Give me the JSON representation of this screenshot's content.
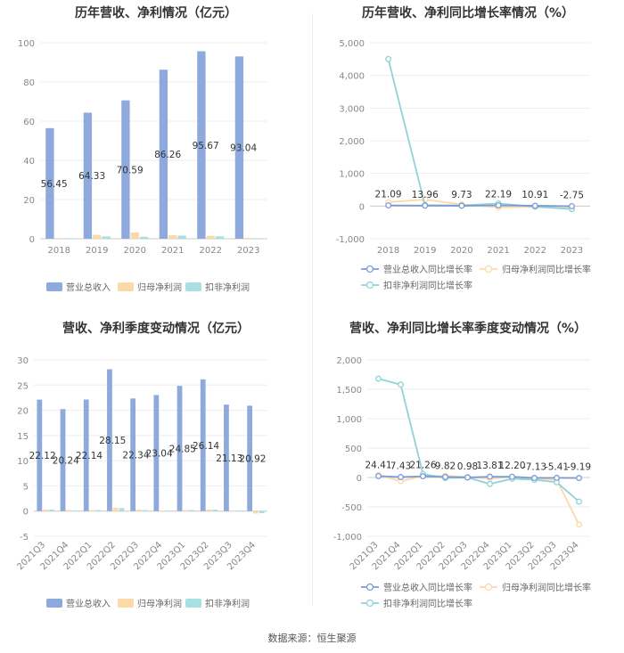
{
  "source": "数据来源：恒生聚源",
  "legend_labels": {
    "p1": [
      "营业总收入",
      "归母净利润",
      "扣非净利润"
    ],
    "p2": [
      "营业总收入同比增长率",
      "归母净利润同比增长率",
      "扣非净利润同比增长率"
    ]
  },
  "colors": {
    "revenue": "#8eaadc",
    "net_profit": "#fcd9a8",
    "deducted_profit": "#a8dfe3",
    "axis_text": "#888888",
    "grid": "#eeeeee"
  },
  "chart_data": [
    {
      "type": "bar",
      "title": "历年营收、净利情况（亿元）",
      "categories": [
        "2018",
        "2019",
        "2020",
        "2021",
        "2022",
        "2023"
      ],
      "ylim": [
        0,
        100
      ],
      "yticks": [
        0,
        20,
        40,
        60,
        80,
        100
      ],
      "series": [
        {
          "name": "营业总收入",
          "values": [
            56.45,
            64.33,
            70.59,
            86.26,
            95.67,
            93.04
          ]
        },
        {
          "name": "归母净利润",
          "values": [
            0.4,
            2.0,
            3.2,
            1.8,
            1.5,
            0.5
          ]
        },
        {
          "name": "扣非净利润",
          "values": [
            0.3,
            1.2,
            1.0,
            1.6,
            1.2,
            0.3
          ]
        }
      ],
      "data_labels": [
        "56.45",
        "64.33",
        "70.59",
        "86.26",
        "95.67",
        "93.04"
      ]
    },
    {
      "type": "line",
      "title": "历年营收、净利同比增长率情况（%）",
      "categories": [
        "2018",
        "2019",
        "2020",
        "2021",
        "2022",
        "2023"
      ],
      "ylim": [
        -1000,
        5000
      ],
      "yticks": [
        -1000,
        0,
        1000,
        2000,
        3000,
        4000,
        5000
      ],
      "ytick_labels": [
        "-1,000",
        "0",
        "1,000",
        "2,000",
        "3,000",
        "4,000",
        "5,000"
      ],
      "series": [
        {
          "name": "营业总收入同比增长率",
          "values": [
            21.09,
            13.96,
            9.73,
            22.19,
            10.91,
            -2.75
          ]
        },
        {
          "name": "归母净利润同比增长率",
          "values": [
            120,
            200,
            50,
            -40,
            -20,
            -60
          ]
        },
        {
          "name": "扣非净利润同比增长率",
          "values": [
            4500,
            30,
            20,
            80,
            -20,
            -90
          ]
        }
      ],
      "data_labels": [
        "21.09",
        "13.96",
        "9.73",
        "22.19",
        "10.91",
        "-2.75"
      ]
    },
    {
      "type": "bar",
      "title": "营收、净利季度变动情况（亿元）",
      "categories": [
        "2021Q3",
        "2021Q4",
        "2022Q1",
        "2022Q2",
        "2022Q3",
        "2022Q4",
        "2023Q1",
        "2023Q2",
        "2023Q3",
        "2023Q4"
      ],
      "ylim": [
        -5,
        30
      ],
      "yticks": [
        -5,
        0,
        5,
        10,
        15,
        20,
        25,
        30
      ],
      "series": [
        {
          "name": "营业总收入",
          "values": [
            22.12,
            20.24,
            22.14,
            28.15,
            22.34,
            23.04,
            24.85,
            26.14,
            21.13,
            20.92
          ]
        },
        {
          "name": "归母净利润",
          "values": [
            0.3,
            0.2,
            0.2,
            0.7,
            0.3,
            0.1,
            0.2,
            0.3,
            0.1,
            -0.5
          ]
        },
        {
          "name": "扣非净利润",
          "values": [
            0.3,
            0.1,
            0.2,
            0.6,
            0.2,
            0.05,
            0.2,
            0.3,
            0.05,
            -0.4
          ]
        }
      ],
      "data_labels": [
        "22.12",
        "20.24",
        "22.14",
        "28.15",
        "22.34",
        "23.04",
        "24.85",
        "26.14",
        "21.13",
        "20.92"
      ]
    },
    {
      "type": "line",
      "title": "营收、净利同比增长率季度变动情况（%）",
      "categories": [
        "2021Q3",
        "2021Q4",
        "2022Q1",
        "2022Q2",
        "2022Q3",
        "2022Q4",
        "2023Q1",
        "2023Q2",
        "2023Q3",
        "2023Q4"
      ],
      "ylim": [
        -1000,
        2000
      ],
      "yticks": [
        -1000,
        -500,
        0,
        500,
        1000,
        1500,
        2000
      ],
      "ytick_labels": [
        "-1,000",
        "-500",
        "0",
        "500",
        "1,000",
        "1,500",
        "2,000"
      ],
      "series": [
        {
          "name": "营业总收入同比增长率",
          "values": [
            24.41,
            7.43,
            21.26,
            9.82,
            0.98,
            13.81,
            12.2,
            -7.13,
            -5.41,
            -9.19
          ]
        },
        {
          "name": "归母净利润同比增长率",
          "values": [
            40,
            -60,
            20,
            30,
            10,
            -20,
            10,
            -20,
            -40,
            -800
          ]
        },
        {
          "name": "扣非净利润同比增长率",
          "values": [
            1680,
            1580,
            60,
            -10,
            0,
            -110,
            -20,
            -40,
            -80,
            -410
          ]
        }
      ],
      "data_labels": [
        "24.41",
        "7.43",
        "21.26",
        "9.82",
        "0.98",
        "13.81",
        "12.20",
        "-7.13",
        "-5.41",
        "-9.19"
      ]
    }
  ]
}
